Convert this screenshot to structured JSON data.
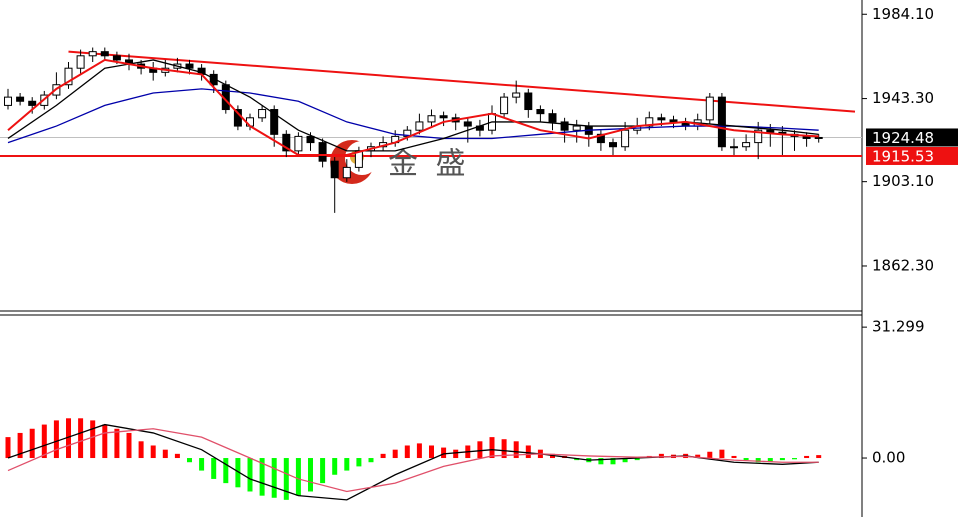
{
  "chart_data": [
    {
      "type": "candlestick",
      "ylim": [
        1841,
        1991
      ],
      "yticks": [
        {
          "value": 1984.1,
          "label": "1984.10"
        },
        {
          "value": 1943.3,
          "label": "1943.30"
        },
        {
          "value": 1903.1,
          "label": "1903.10"
        },
        {
          "value": 1862.3,
          "label": "1862.30"
        }
      ],
      "ohlc": [
        [
          1940,
          1948,
          1938,
          1944
        ],
        [
          1944,
          1946,
          1940,
          1942
        ],
        [
          1942,
          1944,
          1936,
          1940
        ],
        [
          1940,
          1947,
          1938,
          1945
        ],
        [
          1945,
          1956,
          1943,
          1950
        ],
        [
          1950,
          1961,
          1948,
          1958
        ],
        [
          1958,
          1967,
          1955,
          1964
        ],
        [
          1964,
          1968,
          1961,
          1966
        ],
        [
          1966,
          1968,
          1962,
          1964
        ],
        [
          1964,
          1966,
          1960,
          1962
        ],
        [
          1962,
          1965,
          1957,
          1960
        ],
        [
          1960,
          1962,
          1955,
          1958
        ],
        [
          1958,
          1961,
          1952,
          1956
        ],
        [
          1956,
          1962,
          1954,
          1958
        ],
        [
          1958,
          1963,
          1956,
          1960
        ],
        [
          1960,
          1962,
          1955,
          1958
        ],
        [
          1958,
          1960,
          1952,
          1955
        ],
        [
          1955,
          1957,
          1946,
          1950
        ],
        [
          1950,
          1952,
          1936,
          1938
        ],
        [
          1938,
          1940,
          1928,
          1930
        ],
        [
          1930,
          1936,
          1928,
          1934
        ],
        [
          1934,
          1940,
          1932,
          1938
        ],
        [
          1938,
          1940,
          1920,
          1926
        ],
        [
          1926,
          1928,
          1915,
          1918
        ],
        [
          1918,
          1927,
          1916,
          1925
        ],
        [
          1925,
          1927,
          1918,
          1922
        ],
        [
          1922,
          1924,
          1910,
          1913
        ],
        [
          1913,
          1915,
          1888,
          1905
        ],
        [
          1905,
          1914,
          1903,
          1910
        ],
        [
          1910,
          1920,
          1908,
          1918
        ],
        [
          1918,
          1922,
          1915,
          1920
        ],
        [
          1920,
          1925,
          1918,
          1922
        ],
        [
          1922,
          1928,
          1920,
          1925
        ],
        [
          1925,
          1930,
          1923,
          1928
        ],
        [
          1928,
          1936,
          1926,
          1932
        ],
        [
          1932,
          1938,
          1930,
          1935
        ],
        [
          1935,
          1937,
          1930,
          1934
        ],
        [
          1934,
          1936,
          1928,
          1932
        ],
        [
          1932,
          1934,
          1922,
          1930
        ],
        [
          1930,
          1933,
          1925,
          1928
        ],
        [
          1928,
          1940,
          1926,
          1936
        ],
        [
          1936,
          1946,
          1934,
          1944
        ],
        [
          1944,
          1952,
          1941,
          1946
        ],
        [
          1946,
          1948,
          1934,
          1938
        ],
        [
          1938,
          1940,
          1932,
          1936
        ],
        [
          1936,
          1938,
          1928,
          1932
        ],
        [
          1932,
          1934,
          1922,
          1928
        ],
        [
          1928,
          1933,
          1922,
          1930
        ],
        [
          1930,
          1932,
          1920,
          1926
        ],
        [
          1926,
          1928,
          1918,
          1922
        ],
        [
          1922,
          1924,
          1916,
          1920
        ],
        [
          1920,
          1932,
          1918,
          1928
        ],
        [
          1928,
          1934,
          1926,
          1930
        ],
        [
          1930,
          1937,
          1928,
          1934
        ],
        [
          1934,
          1936,
          1930,
          1933
        ],
        [
          1933,
          1935,
          1929,
          1932
        ],
        [
          1932,
          1934,
          1928,
          1930
        ],
        [
          1930,
          1936,
          1928,
          1933
        ],
        [
          1933,
          1946,
          1931,
          1944
        ],
        [
          1944,
          1946,
          1918,
          1920
        ],
        [
          1920,
          1924,
          1916,
          1920
        ],
        [
          1920,
          1926,
          1918,
          1922
        ],
        [
          1922,
          1932,
          1914,
          1928
        ],
        [
          1928,
          1931,
          1920,
          1927
        ],
        [
          1927,
          1930,
          1916,
          1926
        ],
        [
          1926,
          1928,
          1918,
          1925
        ],
        [
          1925,
          1927,
          1920,
          1924
        ],
        [
          1924,
          1926,
          1922,
          1924.48
        ]
      ],
      "series": [
        {
          "color": "#0000aa",
          "x": [
            0,
            4,
            8,
            12,
            16,
            20,
            24,
            28,
            32,
            36,
            40,
            44,
            48,
            52,
            56,
            60,
            64,
            67
          ],
          "values": [
            1922,
            1930,
            1940,
            1946,
            1948,
            1946,
            1942,
            1932,
            1926,
            1924,
            1924,
            1926,
            1928,
            1929,
            1930,
            1930,
            1929,
            1928
          ]
        },
        {
          "color": "#000000",
          "x": [
            0,
            4,
            8,
            12,
            16,
            20,
            24,
            28,
            32,
            36,
            40,
            44,
            48,
            52,
            56,
            60,
            64,
            67
          ],
          "values": [
            1924,
            1940,
            1958,
            1962,
            1956,
            1944,
            1928,
            1918,
            1918,
            1924,
            1932,
            1932,
            1930,
            1930,
            1932,
            1930,
            1928,
            1926
          ]
        },
        {
          "color": "#ee1111",
          "x": [
            0,
            4,
            8,
            12,
            16,
            20,
            24,
            28,
            32,
            36,
            40,
            44,
            48,
            52,
            56,
            60,
            64,
            67
          ],
          "values": [
            1928,
            1948,
            1962,
            1958,
            1955,
            1930,
            1916,
            1916,
            1922,
            1932,
            1936,
            1928,
            1924,
            1930,
            1932,
            1928,
            1926,
            1925
          ]
        }
      ],
      "trendline": {
        "color": "#ee1111",
        "x": [
          5,
          70
        ],
        "values": [
          1966,
          1937
        ]
      },
      "price_lines": [
        {
          "value": 1924.48,
          "color": "#c0c0c0",
          "label_color": "#000000"
        },
        {
          "value": 1915.53,
          "color": "#ee1111",
          "label_color": "#ee1111"
        }
      ],
      "watermark": "金 盛"
    },
    {
      "type": "macd",
      "ylim": [
        -14.1,
        34.2
      ],
      "yticks": [
        31.299,
        {
          "value": 0,
          "label": "0.00"
        }
      ],
      "up_color": "#ff0000",
      "down_color": "#00ff00",
      "values": [
        5,
        6,
        7,
        8,
        9,
        9.5,
        9.5,
        9,
        8,
        7,
        6,
        4,
        3,
        2,
        1,
        -1,
        -3,
        -5,
        -6,
        -7,
        -8,
        -9,
        -9.5,
        -10,
        -9,
        -8,
        -6,
        -4,
        -3,
        -2,
        -1,
        1,
        2,
        3,
        3.5,
        3,
        2.5,
        2,
        3,
        4,
        5,
        4.5,
        4,
        3,
        2,
        1,
        0.5,
        -0.5,
        -1,
        -1.5,
        -1.5,
        -1,
        -0.5,
        0.5,
        1,
        0.8,
        1,
        0.8,
        1.5,
        2,
        0.5,
        -0.5,
        -1,
        -1,
        -0.5,
        -0.3,
        0.5,
        0.7
      ],
      "series": [
        {
          "color": "#000000",
          "x": [
            0,
            4,
            8,
            12,
            16,
            20,
            24,
            28,
            32,
            36,
            40,
            44,
            48,
            52,
            56,
            60,
            64,
            67
          ],
          "values": [
            0,
            4,
            8,
            6,
            2,
            -5,
            -9,
            -10,
            -4,
            1,
            2,
            1,
            -0.5,
            0,
            0.5,
            -1,
            -1.5,
            -1
          ]
        },
        {
          "color": "#e0506a",
          "x": [
            0,
            4,
            8,
            12,
            16,
            20,
            24,
            28,
            32,
            36,
            40,
            44,
            48,
            52,
            56,
            60,
            64,
            67
          ],
          "values": [
            -3,
            2,
            6,
            7,
            5,
            0,
            -5,
            -8,
            -6,
            -2,
            0.5,
            1,
            0.5,
            0.2,
            0.4,
            -0.5,
            -1,
            -1
          ]
        }
      ]
    }
  ]
}
